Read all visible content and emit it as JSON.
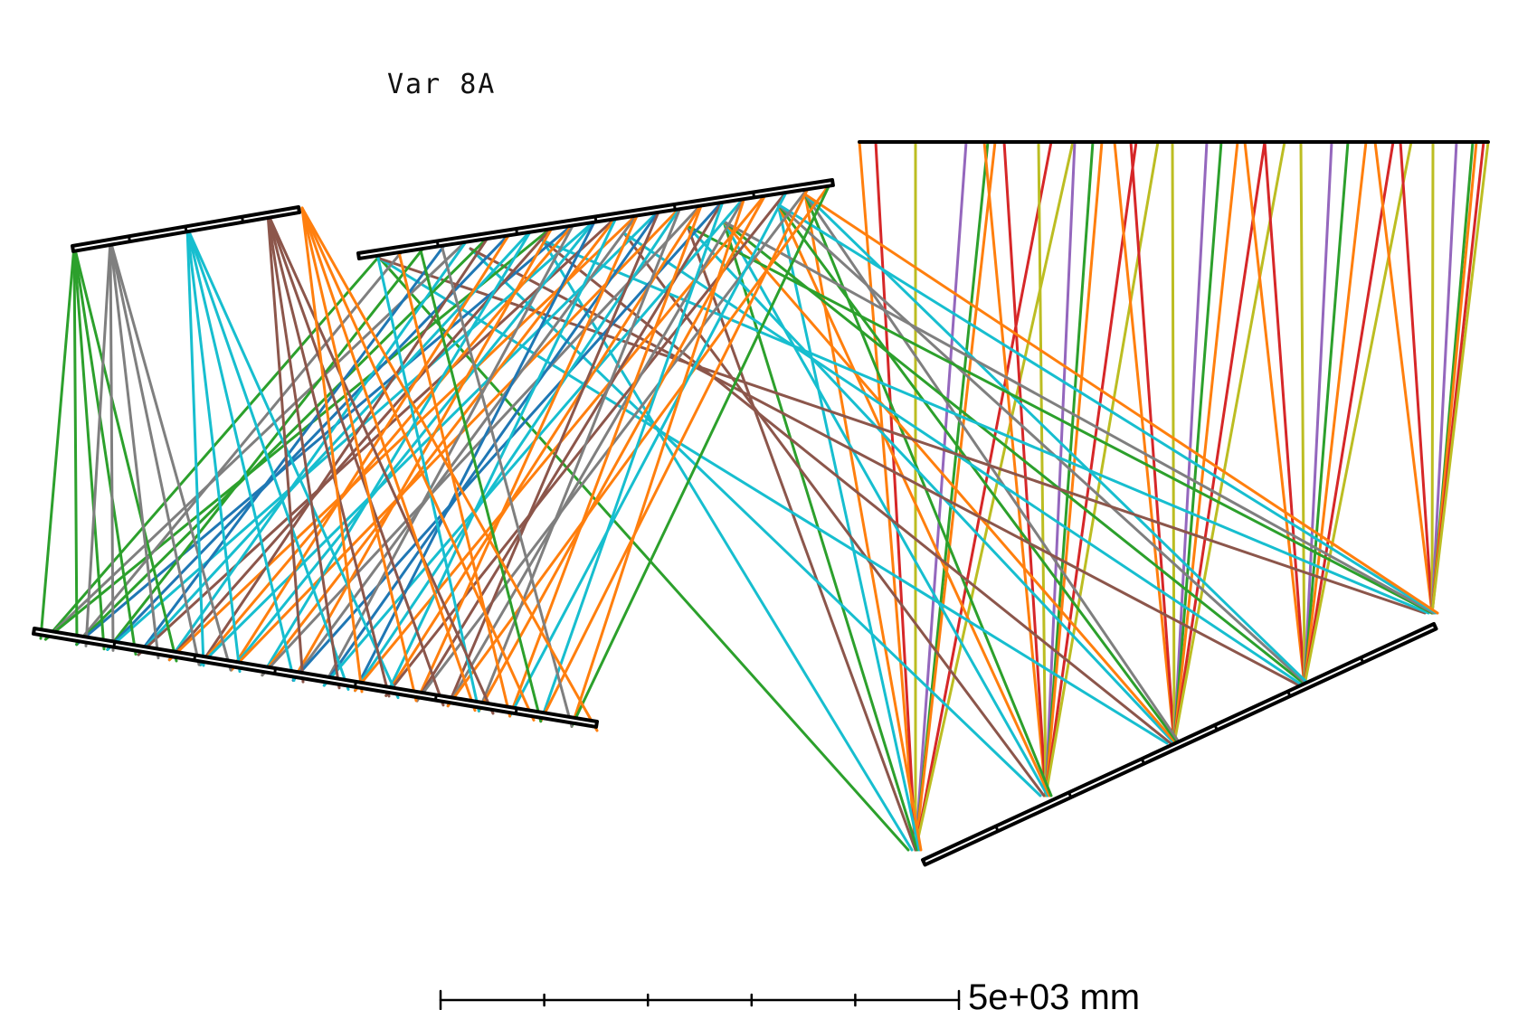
{
  "title": "Var 8A",
  "scale_bar": {
    "label": "5e+03 mm",
    "ticks": 6
  },
  "colors": {
    "element": "#000000",
    "green": "#2ca02c",
    "gray": "#7f7f7f",
    "cyan": "#17becf",
    "blue": "#1f77b4",
    "brown": "#8c564b",
    "orange": "#ff7f0e",
    "red": "#d62728",
    "purple": "#9467bd",
    "olive": "#bcbd22"
  },
  "elements": [
    {
      "name": "detector-plane",
      "type": "image-plane"
    },
    {
      "name": "upper-left-mirror",
      "type": "mirror"
    },
    {
      "name": "upper-middle-mirror",
      "type": "mirror"
    },
    {
      "name": "lower-left-mirror",
      "type": "mirror"
    },
    {
      "name": "lower-right-mirror",
      "type": "mirror"
    }
  ],
  "ray_colors_detector": [
    "orange",
    "red",
    "olive",
    "purple",
    "green"
  ]
}
